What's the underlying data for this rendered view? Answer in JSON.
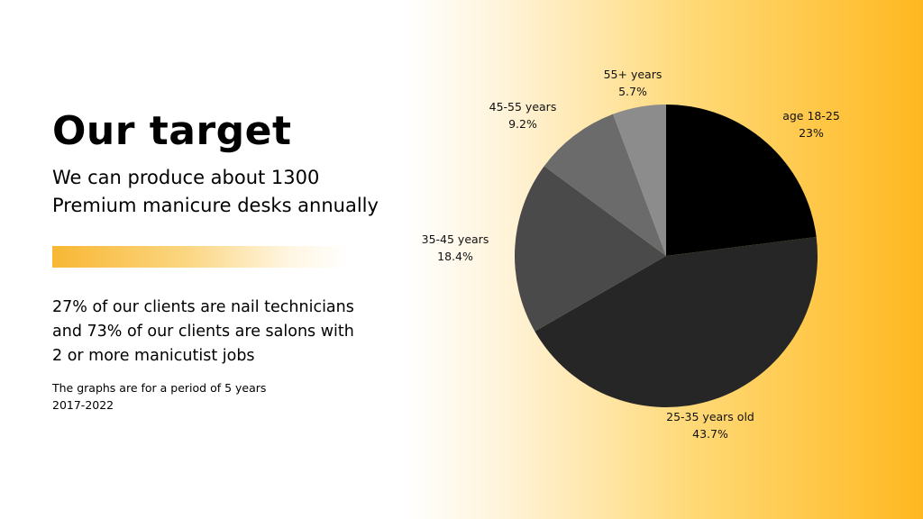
{
  "slide": {
    "title": "Our target",
    "subtitle_line1": "We can produce about 1300",
    "subtitle_line2": "Premium manicure desks annually",
    "clients_line1": "27% of our clients are nail technicians",
    "clients_line2": "and 73% of our clients are salons with",
    "clients_line3": "2 or more manicutist  jobs",
    "period_line1": "The graphs are for a period of 5 years",
    "period_line2": "2017-2022"
  },
  "chart_data": {
    "type": "pie",
    "slices": [
      {
        "label": "age 18-25",
        "value_label": "23%",
        "value": 23.0,
        "color": "#000000"
      },
      {
        "label": "25-35 years old",
        "value_label": "43.7%",
        "value": 43.7,
        "color": "#262626"
      },
      {
        "label": "35-45 years",
        "value_label": "18.4%",
        "value": 18.4,
        "color": "#4a4a4a"
      },
      {
        "label": "45-55  years",
        "value_label": "9.2%",
        "value": 9.2,
        "color": "#6b6b6b"
      },
      {
        "label": "55+ years",
        "value_label": "5.7%",
        "value": 5.7,
        "color": "#8c8c8c"
      }
    ],
    "start": "12 o'clock",
    "direction": "clockwise",
    "legend": "none (labels beside slices)"
  }
}
